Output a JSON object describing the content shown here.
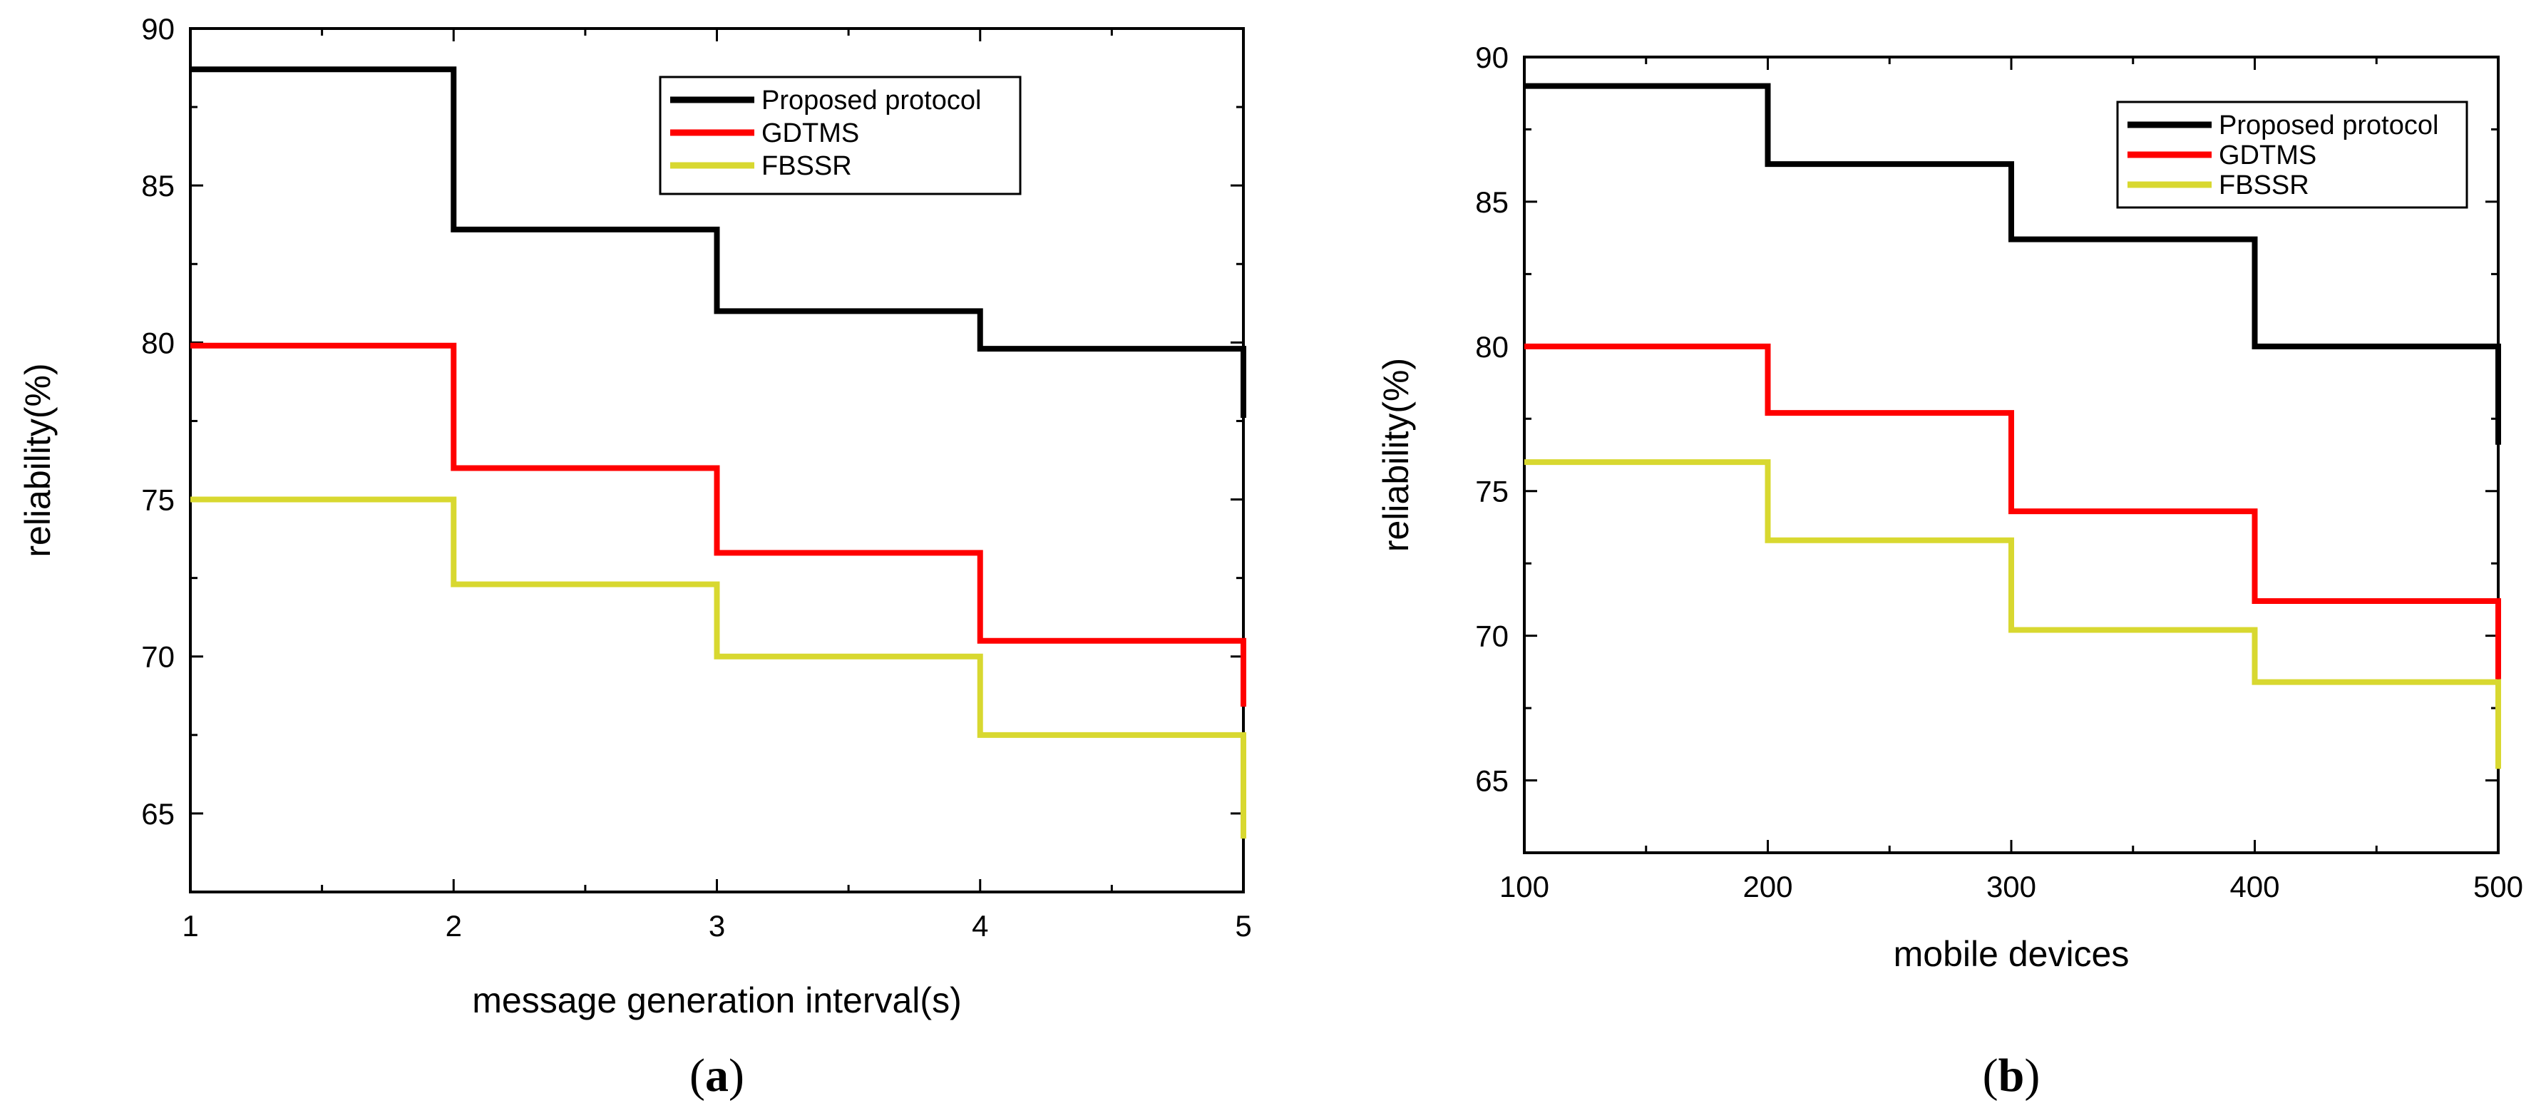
{
  "chart_data": [
    {
      "type": "line",
      "style": "step",
      "panel_label": "(a)",
      "panel_letter": "a",
      "xlabel": "message generation interval(s)",
      "ylabel": "reliability(%)",
      "xlim": [
        1,
        5
      ],
      "ylim": [
        62.5,
        90
      ],
      "xticks": [
        1,
        2,
        3,
        4,
        5
      ],
      "yticks": [
        65,
        70,
        75,
        80,
        85,
        90
      ],
      "legend_position": "top-right",
      "series": [
        {
          "name": "Proposed protocol",
          "color": "#000000",
          "x": [
            1,
            2,
            3,
            4,
            5
          ],
          "values": [
            88.7,
            83.6,
            81.0,
            79.8,
            77.6
          ]
        },
        {
          "name": "GDTMS",
          "color": "#ff0000",
          "x": [
            1,
            2,
            3,
            4,
            5
          ],
          "values": [
            79.9,
            76.0,
            73.3,
            70.5,
            68.4
          ]
        },
        {
          "name": "FBSSR",
          "color": "#d8d830",
          "x": [
            1,
            2,
            3,
            4,
            5
          ],
          "values": [
            75.0,
            72.3,
            70.0,
            67.5,
            64.2
          ]
        }
      ]
    },
    {
      "type": "line",
      "style": "step",
      "panel_label": "(b)",
      "panel_letter": "b",
      "xlabel": "mobile devices",
      "ylabel": "reliability(%)",
      "xlim": [
        100,
        500
      ],
      "ylim": [
        62.5,
        90
      ],
      "xticks": [
        100,
        200,
        300,
        400,
        500
      ],
      "yticks": [
        65,
        70,
        75,
        80,
        85,
        90
      ],
      "legend_position": "top-right",
      "series": [
        {
          "name": "Proposed protocol",
          "color": "#000000",
          "x": [
            100,
            200,
            300,
            400,
            500
          ],
          "values": [
            89.0,
            86.3,
            83.7,
            80.0,
            76.6
          ]
        },
        {
          "name": "GDTMS",
          "color": "#ff0000",
          "x": [
            100,
            200,
            300,
            400,
            500
          ],
          "values": [
            80.0,
            77.7,
            74.3,
            71.2,
            68.5
          ]
        },
        {
          "name": "FBSSR",
          "color": "#d8d830",
          "x": [
            100,
            200,
            300,
            400,
            500
          ],
          "values": [
            76.0,
            73.3,
            70.2,
            68.4,
            65.4
          ]
        }
      ]
    }
  ]
}
